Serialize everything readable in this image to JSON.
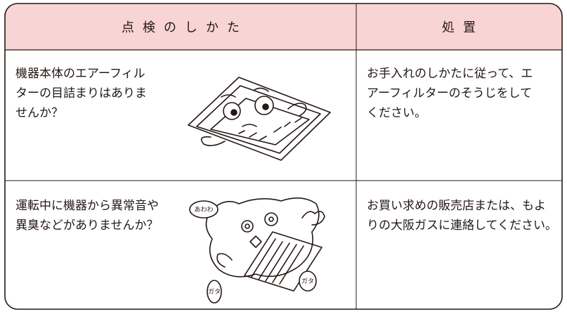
{
  "table": {
    "header": [
      "点検のしかた",
      "処置"
    ],
    "rows": [
      {
        "check": [
          "機器本体のエアーフィル",
          "ターの目詰まりはありま",
          "せんか？"
        ],
        "action": [
          "お手入れのしかたに従って、エ",
          "アーフィルターのそうじをして",
          "ください。"
        ]
      },
      {
        "check": [
          "運転中に機器から異常音や",
          "異臭などがありませんか？"
        ],
        "action": [
          "お買い求めの販売店または、もよ",
          "りの大阪ガスに連絡してください。"
        ],
        "sounds": [
          "あわわ",
          "ガタ",
          "ガタ"
        ]
      }
    ]
  }
}
